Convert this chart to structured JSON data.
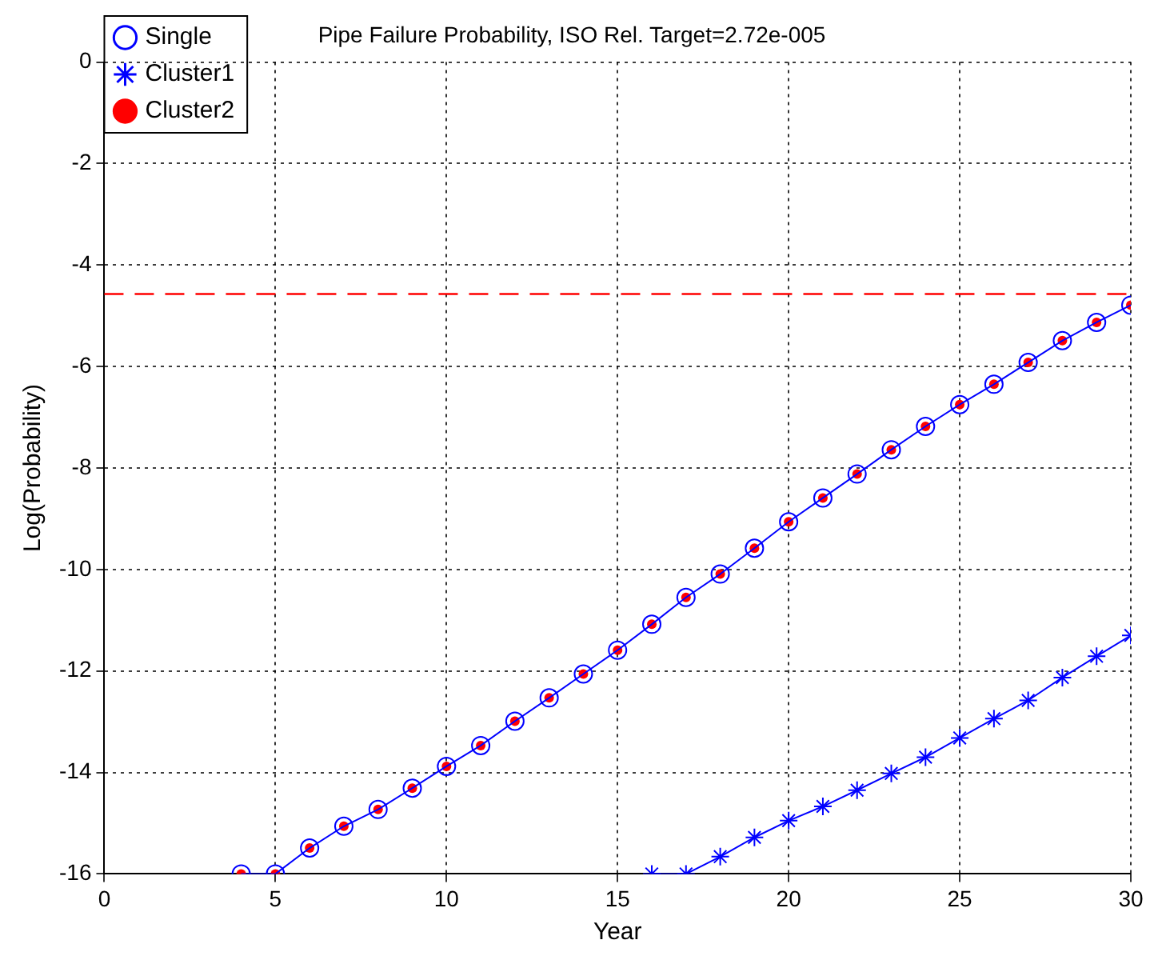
{
  "chart_data": {
    "type": "line",
    "title": "Pipe Failure Probability, ISO Rel. Target=2.72e-005",
    "xlabel": "Year",
    "ylabel": "Log(Probability)",
    "xlim": [
      0,
      30
    ],
    "xticks": [
      0,
      5,
      10,
      15,
      20,
      25,
      30
    ],
    "ylim": [
      -16,
      0
    ],
    "yticks": [
      -16,
      -14,
      -12,
      -10,
      -8,
      -6,
      -4,
      -2,
      0
    ],
    "grid": true,
    "legend": "top left",
    "series": [
      {
        "name": "Single",
        "color": "#0000ff",
        "marker": "circle",
        "x": [
          4,
          5,
          6,
          7,
          8,
          9,
          10,
          11,
          12,
          13,
          14,
          15,
          16,
          17,
          18,
          19,
          20,
          21,
          22,
          23,
          24,
          25,
          26,
          27,
          28,
          29,
          30
        ],
        "values": [
          -16,
          -16,
          -15.49,
          -15.06,
          -14.73,
          -14.31,
          -13.88,
          -13.47,
          -12.99,
          -12.53,
          -12.06,
          -11.59,
          -11.08,
          -10.55,
          -10.09,
          -9.58,
          -9.06,
          -8.59,
          -8.12,
          -7.64,
          -7.18,
          -6.75,
          -6.35,
          -5.92,
          -5.49,
          -5.13,
          -4.79
        ]
      },
      {
        "name": "Cluster1",
        "color": "#0000ff",
        "marker": "cross",
        "x": [
          16,
          17,
          18,
          19,
          20,
          21,
          22,
          23,
          24,
          25,
          26,
          27,
          28,
          29,
          30
        ],
        "values": [
          -16,
          -16,
          -15.66,
          -15.28,
          -14.95,
          -14.67,
          -14.35,
          -14.02,
          -13.7,
          -13.32,
          -12.94,
          -12.58,
          -12.13,
          -11.71,
          -11.3
        ]
      },
      {
        "name": "Cluster2",
        "type": "scatter",
        "color": "#ff0000",
        "marker": "circle",
        "x": [
          4,
          5,
          6,
          7,
          8,
          9,
          10,
          11,
          12,
          13,
          14,
          15,
          16,
          17,
          18,
          19,
          20,
          21,
          22,
          23,
          24,
          25,
          26,
          27,
          28,
          29,
          30
        ],
        "values": [
          -16,
          -16,
          -15.49,
          -15.06,
          -14.73,
          -14.31,
          -13.88,
          -13.47,
          -12.99,
          -12.53,
          -12.06,
          -11.59,
          -11.08,
          -10.55,
          -10.09,
          -9.58,
          -9.06,
          -8.59,
          -8.12,
          -7.64,
          -7.18,
          -6.75,
          -6.35,
          -5.92,
          -5.49,
          -5.13,
          -4.79
        ]
      }
    ],
    "ref_lines": [
      {
        "axis": "y",
        "value": -4.57,
        "color": "#ff0000",
        "line_style": "dashed"
      }
    ]
  }
}
